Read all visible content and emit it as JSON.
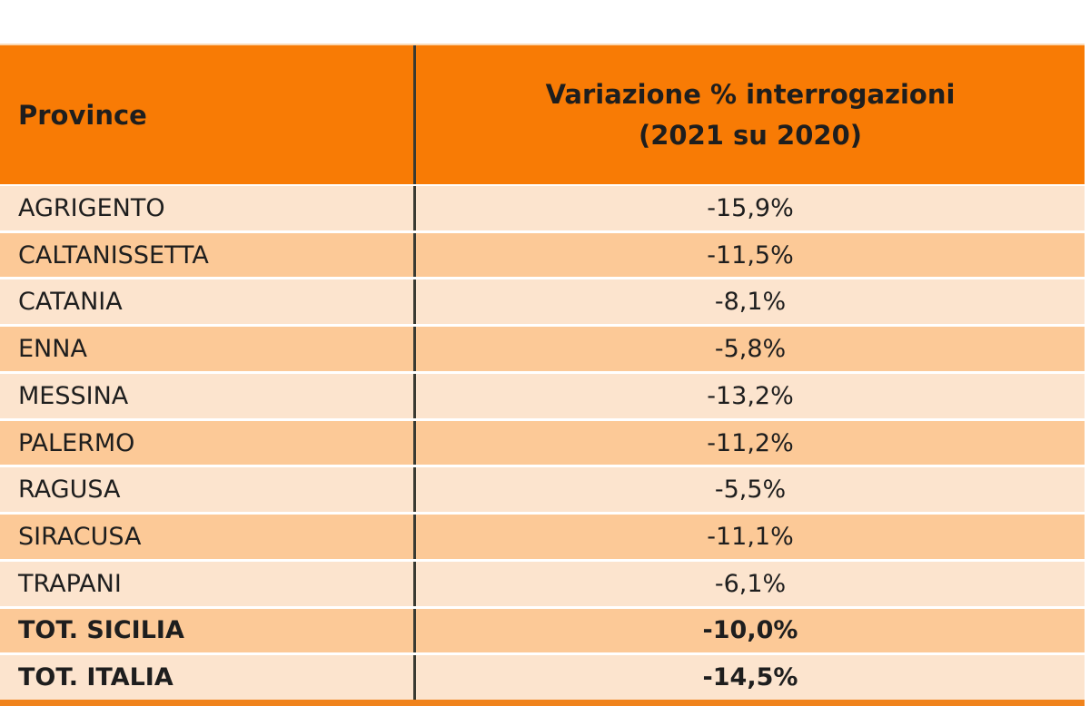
{
  "table": {
    "header": {
      "col1": "Province",
      "col2_line1": "Variazione % interrogazioni",
      "col2_line2": "(2021 su 2020)"
    },
    "rows": [
      {
        "name": "AGRIGENTO",
        "value": "-15,9%",
        "bold": false
      },
      {
        "name": "CALTANISSETTA",
        "value": "-11,5%",
        "bold": false
      },
      {
        "name": "CATANIA",
        "value": "-8,1%",
        "bold": false
      },
      {
        "name": "ENNA",
        "value": "-5,8%",
        "bold": false
      },
      {
        "name": "MESSINA",
        "value": "-13,2%",
        "bold": false
      },
      {
        "name": "PALERMO",
        "value": "-11,2%",
        "bold": false
      },
      {
        "name": "RAGUSA",
        "value": "-5,5%",
        "bold": false
      },
      {
        "name": "SIRACUSA",
        "value": "-11,1%",
        "bold": false
      },
      {
        "name": "TRAPANI",
        "value": "-6,1%",
        "bold": false
      },
      {
        "name": "TOT. SICILIA",
        "value": "-10,0%",
        "bold": true
      },
      {
        "name": "TOT. ITALIA",
        "value": "-14,5%",
        "bold": true
      }
    ],
    "colors": {
      "header_bg": "#F87B05",
      "row_light": "#FCE4CE",
      "row_dark": "#FCC997",
      "divider": "#3A3A32",
      "text": "#1E1E1E",
      "bottom_strip": "#F0831C"
    }
  },
  "chart_data": {
    "type": "table",
    "title": "Variazione % interrogazioni (2021 su 2020)",
    "columns": [
      "Province",
      "Variazione % interrogazioni (2021 su 2020)"
    ],
    "categories": [
      "AGRIGENTO",
      "CALTANISSETTA",
      "CATANIA",
      "ENNA",
      "MESSINA",
      "PALERMO",
      "RAGUSA",
      "SIRACUSA",
      "TRAPANI",
      "TOT. SICILIA",
      "TOT. ITALIA"
    ],
    "values": [
      -15.9,
      -11.5,
      -8.1,
      -5.8,
      -13.2,
      -11.2,
      -5.5,
      -11.1,
      -6.1,
      -10.0,
      -14.5
    ],
    "value_format": "percent with comma decimal separator",
    "layout": "header row orange, alternating peach rows, totals rows bold"
  }
}
